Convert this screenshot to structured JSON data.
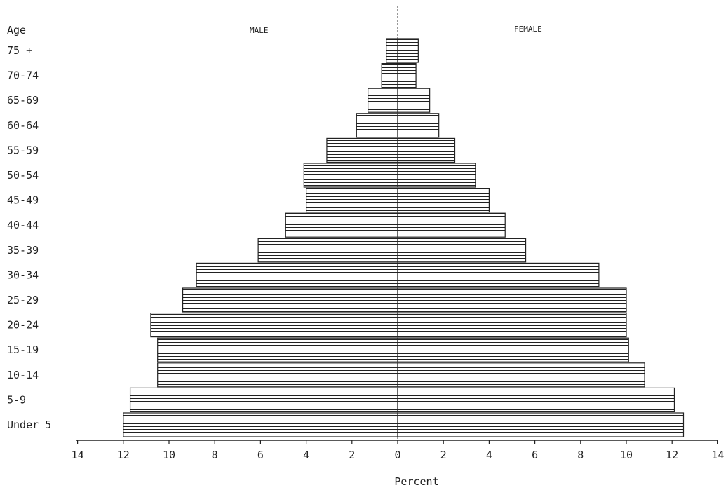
{
  "chart_data": {
    "type": "bar",
    "orientation": "horizontal",
    "layout": "population-pyramid",
    "y_header": "Age",
    "xlabel": "Percent",
    "xlim": [
      -14,
      14
    ],
    "x_ticks": [
      -14,
      -12,
      -10,
      -8,
      -6,
      -4,
      -2,
      0,
      2,
      4,
      6,
      8,
      10,
      12,
      14
    ],
    "x_tick_labels": [
      "14",
      "12",
      "10",
      "8",
      "6",
      "4",
      "2",
      "0",
      "2",
      "4",
      "6",
      "8",
      "10",
      "12",
      "14"
    ],
    "categories": [
      "75 +",
      "70-74",
      "65-69",
      "60-64",
      "55-59",
      "50-54",
      "45-49",
      "40-44",
      "35-39",
      "30-34",
      "25-29",
      "20-24",
      "15-19",
      "10-14",
      "5-9",
      "Under 5"
    ],
    "series": [
      {
        "name": "MALE",
        "side": "left",
        "values": [
          0.5,
          0.7,
          1.3,
          1.8,
          3.1,
          4.1,
          4.0,
          4.9,
          6.1,
          8.8,
          9.4,
          10.8,
          10.5,
          10.5,
          11.7,
          12.0
        ]
      },
      {
        "name": "FEMALE",
        "side": "right",
        "values": [
          0.9,
          0.8,
          1.4,
          1.8,
          2.5,
          3.4,
          4.0,
          4.7,
          5.6,
          8.8,
          10.0,
          10.0,
          10.1,
          10.8,
          12.1,
          12.5
        ]
      }
    ],
    "grid": false,
    "fill_style": "horizontal-hatch"
  }
}
